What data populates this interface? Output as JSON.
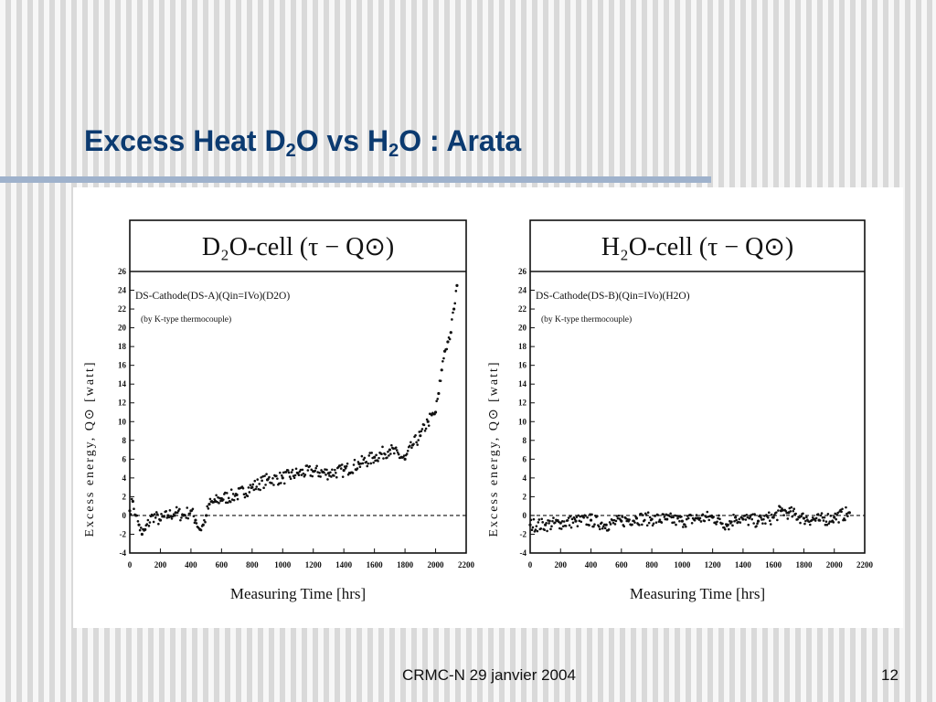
{
  "slide": {
    "title_prefix": "Excess Heat D",
    "title_sub1": "2",
    "title_mid": "O vs H",
    "title_sub2": "2",
    "title_suffix": "O : Arata",
    "footer": "CRMC-N 29 janvier 2004",
    "page_number": "12"
  },
  "colors": {
    "title": "#0b3a70",
    "rule": "#9fb2cc",
    "data": "#111111"
  },
  "chart_data": [
    {
      "type": "scatter",
      "title": "D₂O-cell (τ − Q⊙)",
      "annotation_1": "DS-Cathode(DS-A)(Qin=IVo)(D2O)",
      "annotation_2": "(by K-type thermocouple)",
      "xlabel": "Measuring Time [hrs]",
      "ylabel": "Excess energy, Q⊙ [watt]",
      "xlim": [
        0,
        2200
      ],
      "ylim": [
        -4,
        26
      ],
      "x_ticks": [
        0,
        200,
        400,
        600,
        800,
        1000,
        1200,
        1400,
        1600,
        1800,
        2000,
        2200
      ],
      "y_ticks": [
        -4,
        -2,
        0,
        2,
        4,
        6,
        8,
        10,
        12,
        14,
        16,
        18,
        20,
        22,
        24,
        26
      ],
      "reference_line_y": 0,
      "grid": false,
      "series": [
        {
          "x": [
            0,
            20,
            40,
            60,
            80,
            100,
            150,
            200,
            250,
            300,
            350,
            400,
            430,
            460,
            480,
            500,
            520,
            560,
            600,
            700,
            800,
            900,
            1000,
            1100,
            1200,
            1300,
            1400,
            1500,
            1600,
            1700,
            1800,
            1850,
            1900,
            1950,
            2000,
            2020,
            2040,
            2060,
            2080,
            2100,
            2120,
            2140
          ],
          "y": [
            0.5,
            1.5,
            0,
            -1,
            -2,
            -1.5,
            0,
            -0.5,
            0,
            0.3,
            0,
            0.5,
            -0.5,
            -1.5,
            -1,
            0,
            1.2,
            1.5,
            1.8,
            2.2,
            3,
            3.8,
            4,
            4.5,
            4.7,
            4.5,
            4.8,
            5.5,
            6.2,
            7,
            6,
            7.5,
            8.5,
            10,
            11,
            13,
            15.5,
            17.5,
            18.5,
            19.5,
            22,
            24.5
          ]
        }
      ]
    },
    {
      "type": "scatter",
      "title": "H₂O-cell (τ − Q⊙)",
      "annotation_1": "DS-Cathode(DS-B)(Qin=IVo)(H2O)",
      "annotation_2": "(by K-type thermocouple)",
      "xlabel": "Measuring Time [hrs]",
      "ylabel": "Excess energy, Q⊙ [watt]",
      "xlim": [
        0,
        2200
      ],
      "ylim": [
        -4,
        26
      ],
      "x_ticks": [
        0,
        200,
        400,
        600,
        800,
        1000,
        1200,
        1400,
        1600,
        1800,
        2000,
        2200
      ],
      "y_ticks": [
        -4,
        -2,
        0,
        2,
        4,
        6,
        8,
        10,
        12,
        14,
        16,
        18,
        20,
        22,
        24,
        26
      ],
      "reference_line_y": 0,
      "grid": false,
      "series": [
        {
          "x": [
            0,
            100,
            200,
            300,
            400,
            500,
            600,
            700,
            800,
            900,
            1000,
            1100,
            1200,
            1300,
            1350,
            1400,
            1500,
            1600,
            1650,
            1700,
            1800,
            1900,
            2000,
            2100
          ],
          "y": [
            -1,
            -1,
            -0.8,
            -0.6,
            -0.5,
            -1,
            -0.6,
            -0.3,
            -0.4,
            -0.4,
            -0.6,
            -0.3,
            -0.2,
            -1,
            -0.2,
            -0.4,
            -0.6,
            -0.2,
            0.5,
            0.3,
            -0.3,
            -0.5,
            -0.2,
            0.3
          ]
        }
      ]
    }
  ]
}
